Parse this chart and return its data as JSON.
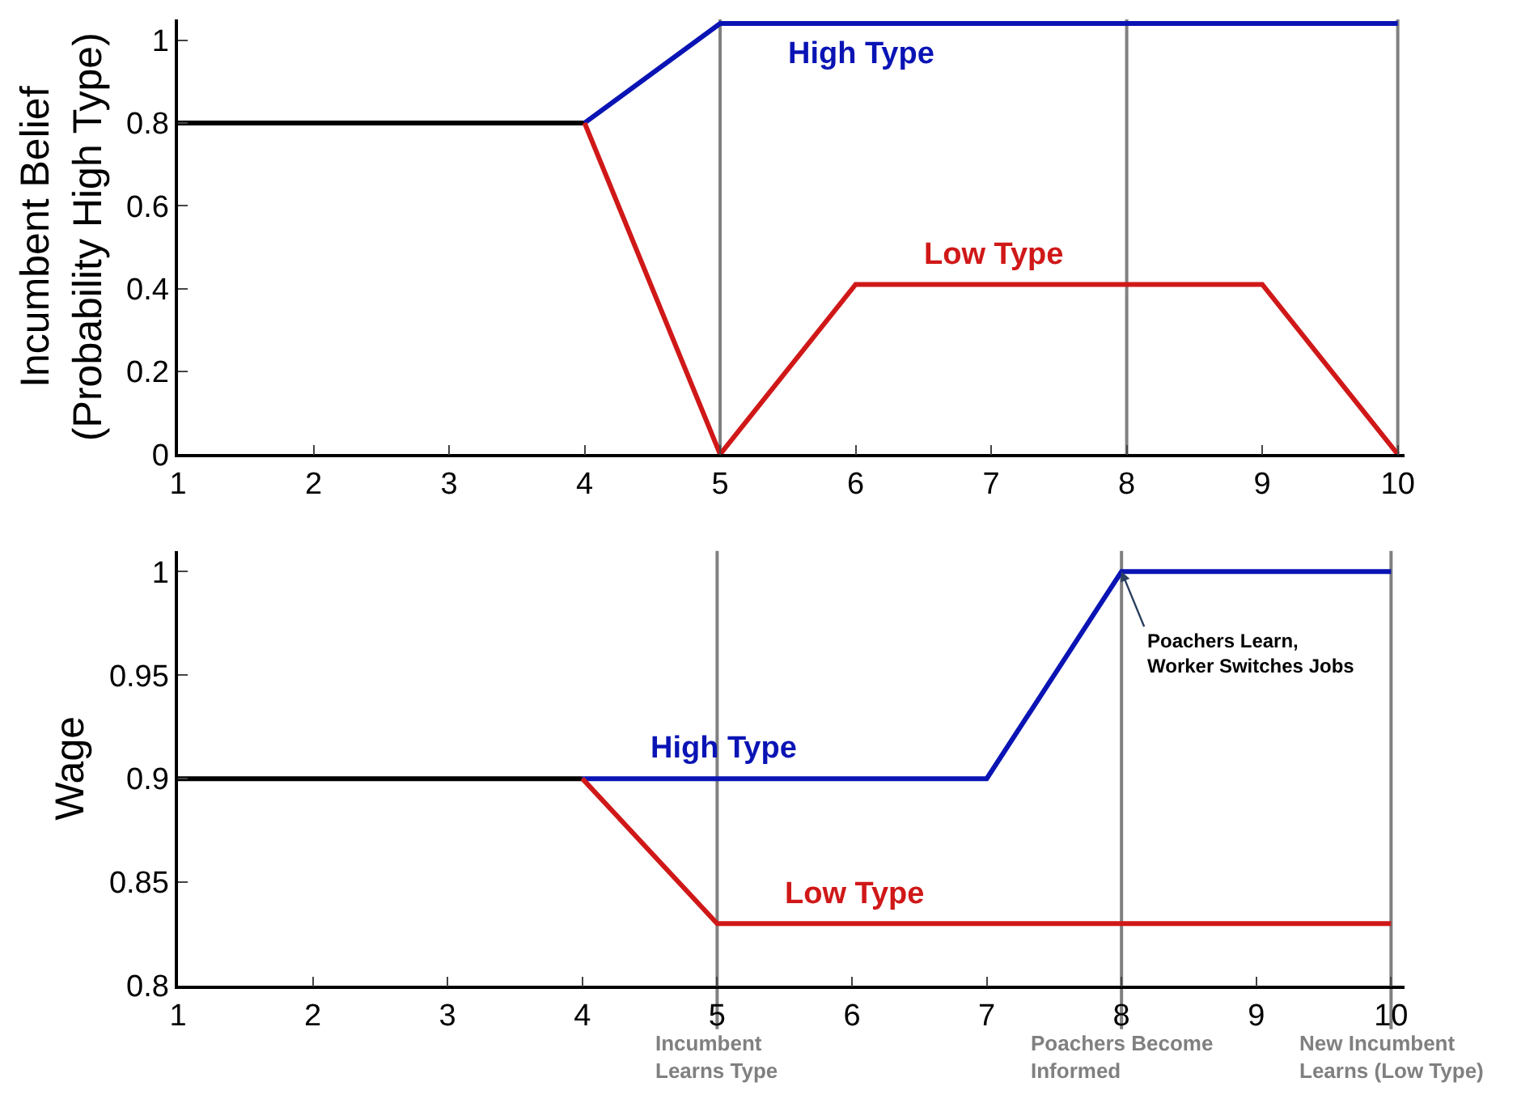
{
  "chart_data": [
    {
      "type": "line",
      "ylabel": "Incumbent Belief\n(Probability High Type)",
      "xlim": [
        1,
        10.05
      ],
      "xticks": [
        1,
        2,
        3,
        4,
        5,
        6,
        7,
        8,
        9,
        10
      ],
      "ylim": [
        0,
        1.05
      ],
      "yticks": [
        0,
        0.2,
        0.4,
        0.6,
        0.8,
        1
      ],
      "grid": false,
      "legend": false,
      "line_style": "solid",
      "marker": "none",
      "series": [
        {
          "x": [
            1,
            4
          ],
          "values": [
            0.8,
            0.8
          ],
          "color": "#000000"
        },
        {
          "name": "High Type",
          "x": [
            4,
            5,
            10
          ],
          "values": [
            0.8,
            1.04,
            1.04
          ],
          "color": "#0a14b4"
        },
        {
          "name": "Low Type",
          "x": [
            4,
            5,
            6,
            9,
            10
          ],
          "values": [
            0.8,
            0,
            0.41,
            0.41,
            0
          ],
          "color": "#d01818"
        }
      ],
      "ref_lines": [
        {
          "axis": "x",
          "value": 5,
          "color": "#808080"
        },
        {
          "axis": "x",
          "value": 8,
          "color": "#808080"
        },
        {
          "axis": "x",
          "value": 10,
          "color": "#808080"
        }
      ]
    },
    {
      "type": "line",
      "ylabel": "Wage",
      "xlim": [
        1,
        10.1
      ],
      "xticks": [
        1,
        2,
        3,
        4,
        5,
        6,
        7,
        8,
        9,
        10
      ],
      "ylim": [
        0.8,
        1.01
      ],
      "yticks": [
        0.8,
        0.85,
        0.9,
        0.95,
        1
      ],
      "grid": false,
      "legend": false,
      "line_style": "solid",
      "marker": "none",
      "series": [
        {
          "x": [
            1,
            4
          ],
          "values": [
            0.9,
            0.9
          ],
          "color": "#000000"
        },
        {
          "name": "High Type",
          "x": [
            4,
            7,
            8,
            10
          ],
          "values": [
            0.9,
            0.9,
            1,
            1
          ],
          "color": "#0a14b4"
        },
        {
          "name": "Low Type",
          "x": [
            4,
            5,
            10
          ],
          "values": [
            0.9,
            0.83,
            0.83
          ],
          "color": "#d01818"
        }
      ],
      "ref_lines": [
        {
          "axis": "x",
          "value": 5,
          "color": "#808080",
          "label": "Incumbent\nLearns Type"
        },
        {
          "axis": "x",
          "value": 8,
          "color": "#808080",
          "label": "Poachers Become\nInformed"
        },
        {
          "axis": "x",
          "value": 10,
          "color": "#808080",
          "label": "New Incumbent\nLearns (Low Type)"
        }
      ],
      "annotations": [
        {
          "text": "Poachers Learn,\nWorker Switches Jobs",
          "x": 8,
          "y": 1
        }
      ]
    }
  ]
}
